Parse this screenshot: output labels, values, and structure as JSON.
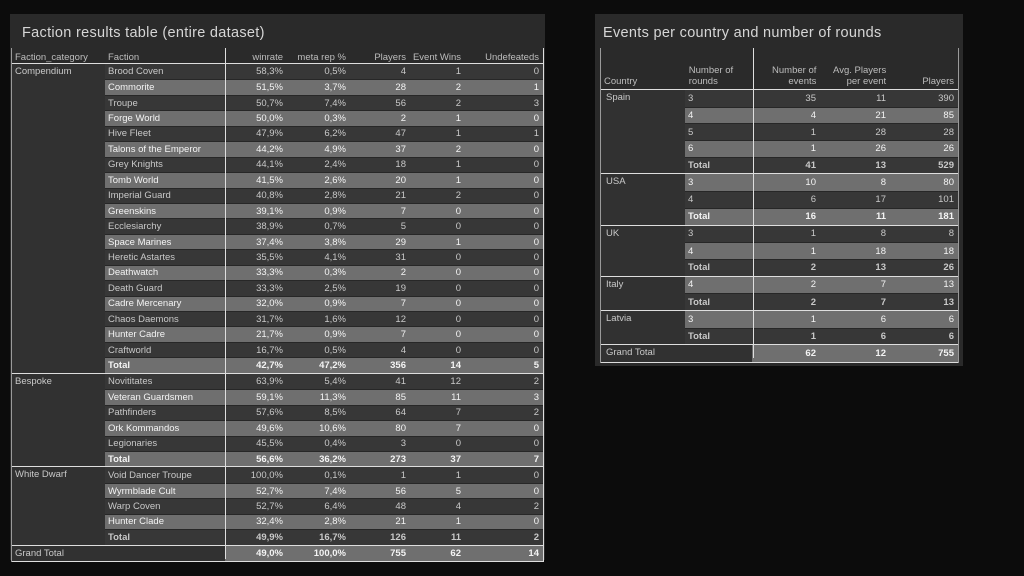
{
  "colors": {
    "page_bg": "#0c0c0c",
    "panel_bg": "#2a2a2a",
    "dark_row": "#373737",
    "highlight_row": "#6f6f6f",
    "grid_line": "#dedede"
  },
  "chart_data": [
    {
      "type": "table",
      "title": "Faction results table (entire dataset)",
      "columns": [
        "Faction_category",
        "Faction",
        "winrate",
        "meta rep %",
        "Players",
        "Event Wins",
        "Undefeateds"
      ],
      "groups": [
        {
          "category": "Compendium",
          "rows": [
            [
              "Brood Coven",
              "58,3%",
              "0,5%",
              "4",
              "1",
              "0"
            ],
            [
              "Commorite",
              "51,5%",
              "3,7%",
              "28",
              "2",
              "1"
            ],
            [
              "Troupe",
              "50,7%",
              "7,4%",
              "56",
              "2",
              "3"
            ],
            [
              "Forge World",
              "50,0%",
              "0,3%",
              "2",
              "1",
              "0"
            ],
            [
              "Hive Fleet",
              "47,9%",
              "6,2%",
              "47",
              "1",
              "1"
            ],
            [
              "Talons of the Emperor",
              "44,2%",
              "4,9%",
              "37",
              "2",
              "0"
            ],
            [
              "Grey Knights",
              "44,1%",
              "2,4%",
              "18",
              "1",
              "0"
            ],
            [
              "Tomb World",
              "41,5%",
              "2,6%",
              "20",
              "1",
              "0"
            ],
            [
              "Imperial Guard",
              "40,8%",
              "2,8%",
              "21",
              "2",
              "0"
            ],
            [
              "Greenskins",
              "39,1%",
              "0,9%",
              "7",
              "0",
              "0"
            ],
            [
              "Ecclesiarchy",
              "38,9%",
              "0,7%",
              "5",
              "0",
              "0"
            ],
            [
              "Space Marines",
              "37,4%",
              "3,8%",
              "29",
              "1",
              "0"
            ],
            [
              "Heretic Astartes",
              "35,5%",
              "4,1%",
              "31",
              "0",
              "0"
            ],
            [
              "Deathwatch",
              "33,3%",
              "0,3%",
              "2",
              "0",
              "0"
            ],
            [
              "Death Guard",
              "33,3%",
              "2,5%",
              "19",
              "0",
              "0"
            ],
            [
              "Cadre Mercenary",
              "32,0%",
              "0,9%",
              "7",
              "0",
              "0"
            ],
            [
              "Chaos Daemons",
              "31,7%",
              "1,6%",
              "12",
              "0",
              "0"
            ],
            [
              "Hunter Cadre",
              "21,7%",
              "0,9%",
              "7",
              "0",
              "0"
            ],
            [
              "Craftworld",
              "16,7%",
              "0,5%",
              "4",
              "0",
              "0"
            ]
          ],
          "total": [
            "Total",
            "42,7%",
            "47,2%",
            "356",
            "14",
            "5"
          ]
        },
        {
          "category": "Bespoke",
          "rows": [
            [
              "Novititates",
              "63,9%",
              "5,4%",
              "41",
              "12",
              "2"
            ],
            [
              "Veteran Guardsmen",
              "59,1%",
              "11,3%",
              "85",
              "11",
              "3"
            ],
            [
              "Pathfinders",
              "57,6%",
              "8,5%",
              "64",
              "7",
              "2"
            ],
            [
              "Ork Kommandos",
              "49,6%",
              "10,6%",
              "80",
              "7",
              "0"
            ],
            [
              "Legionaries",
              "45,5%",
              "0,4%",
              "3",
              "0",
              "0"
            ]
          ],
          "total": [
            "Total",
            "56,6%",
            "36,2%",
            "273",
            "37",
            "7"
          ]
        },
        {
          "category": "White Dwarf",
          "rows": [
            [
              "Void Dancer Troupe",
              "100,0%",
              "0,1%",
              "1",
              "1",
              "0"
            ],
            [
              "Wyrmblade Cult",
              "52,7%",
              "7,4%",
              "56",
              "5",
              "0"
            ],
            [
              "Warp Coven",
              "52,7%",
              "6,4%",
              "48",
              "4",
              "2"
            ],
            [
              "Hunter Clade",
              "32,4%",
              "2,8%",
              "21",
              "1",
              "0"
            ]
          ],
          "total": [
            "Total",
            "49,9%",
            "16,7%",
            "126",
            "11",
            "2"
          ]
        }
      ],
      "grand_total": {
        "label": "Grand Total",
        "values": [
          "49,0%",
          "100,0%",
          "755",
          "62",
          "14"
        ]
      }
    },
    {
      "type": "table",
      "title": "Events per country and number of rounds",
      "columns": [
        "Country",
        "Number of rounds",
        "Number of events",
        "Avg. Players per event",
        "Players"
      ],
      "groups": [
        {
          "country": "Spain",
          "rows": [
            [
              "3",
              "35",
              "11",
              "390"
            ],
            [
              "4",
              "4",
              "21",
              "85"
            ],
            [
              "5",
              "1",
              "28",
              "28"
            ],
            [
              "6",
              "1",
              "26",
              "26"
            ]
          ],
          "total": [
            "Total",
            "41",
            "13",
            "529"
          ]
        },
        {
          "country": "USA",
          "rows": [
            [
              "3",
              "10",
              "8",
              "80"
            ],
            [
              "4",
              "6",
              "17",
              "101"
            ]
          ],
          "total": [
            "Total",
            "16",
            "11",
            "181"
          ]
        },
        {
          "country": "UK",
          "rows": [
            [
              "3",
              "1",
              "8",
              "8"
            ],
            [
              "4",
              "1",
              "18",
              "18"
            ]
          ],
          "total": [
            "Total",
            "2",
            "13",
            "26"
          ]
        },
        {
          "country": "Italy",
          "rows": [
            [
              "4",
              "2",
              "7",
              "13"
            ]
          ],
          "total": [
            "Total",
            "2",
            "7",
            "13"
          ]
        },
        {
          "country": "Latvia",
          "rows": [
            [
              "3",
              "1",
              "6",
              "6"
            ]
          ],
          "total": [
            "Total",
            "1",
            "6",
            "6"
          ]
        }
      ],
      "grand_total": {
        "label": "Grand Total",
        "values": [
          "62",
          "12",
          "755"
        ]
      }
    }
  ]
}
